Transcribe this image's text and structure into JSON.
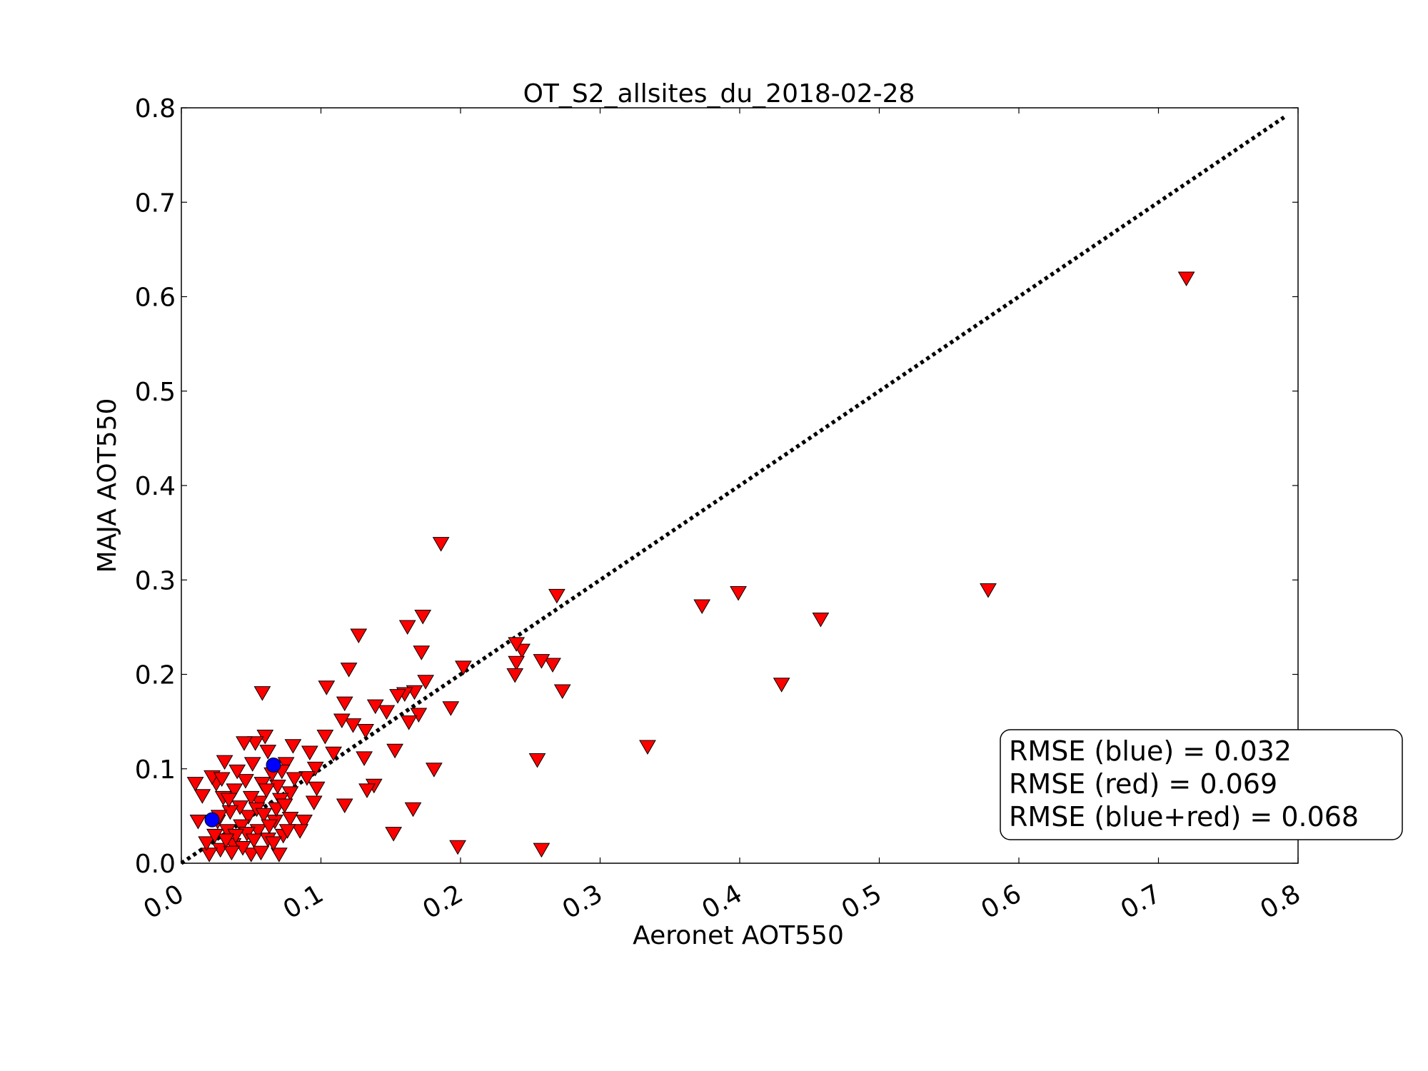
{
  "chart_data": {
    "type": "scatter",
    "title": "OT_S2_allsites_du_2018-02-28",
    "xlabel": "Aeronet AOT550",
    "ylabel": "MAJA AOT550",
    "xlim": [
      0.0,
      0.8
    ],
    "ylim": [
      0.0,
      0.8
    ],
    "xticks": [
      "0.0",
      "0.1",
      "0.2",
      "0.3",
      "0.4",
      "0.5",
      "0.6",
      "0.7",
      "0.8"
    ],
    "yticks": [
      "0.0",
      "0.1",
      "0.2",
      "0.3",
      "0.4",
      "0.5",
      "0.6",
      "0.7",
      "0.8"
    ],
    "grid": false,
    "reference_line": {
      "style": "dotted",
      "color": "#000000",
      "from": [
        0.0,
        0.0
      ],
      "to": [
        0.79,
        0.79
      ]
    },
    "series": [
      {
        "color": "#ff0000",
        "marker": "triangle-down",
        "points": [
          [
            0.72,
            0.62
          ],
          [
            0.578,
            0.29
          ],
          [
            0.458,
            0.259
          ],
          [
            0.43,
            0.19
          ],
          [
            0.399,
            0.287
          ],
          [
            0.373,
            0.273
          ],
          [
            0.334,
            0.124
          ],
          [
            0.269,
            0.284
          ],
          [
            0.273,
            0.183
          ],
          [
            0.266,
            0.211
          ],
          [
            0.258,
            0.215
          ],
          [
            0.255,
            0.11
          ],
          [
            0.258,
            0.015
          ],
          [
            0.244,
            0.226
          ],
          [
            0.24,
            0.213
          ],
          [
            0.239,
            0.2
          ],
          [
            0.24,
            0.233
          ],
          [
            0.202,
            0.208
          ],
          [
            0.198,
            0.018
          ],
          [
            0.193,
            0.165
          ],
          [
            0.186,
            0.339
          ],
          [
            0.181,
            0.1
          ],
          [
            0.175,
            0.193
          ],
          [
            0.172,
            0.224
          ],
          [
            0.173,
            0.262
          ],
          [
            0.17,
            0.158
          ],
          [
            0.167,
            0.182
          ],
          [
            0.166,
            0.058
          ],
          [
            0.162,
            0.251
          ],
          [
            0.163,
            0.15
          ],
          [
            0.16,
            0.18
          ],
          [
            0.155,
            0.178
          ],
          [
            0.153,
            0.12
          ],
          [
            0.152,
            0.032
          ],
          [
            0.147,
            0.161
          ],
          [
            0.138,
            0.083
          ],
          [
            0.139,
            0.167
          ],
          [
            0.133,
            0.078
          ],
          [
            0.131,
            0.112
          ],
          [
            0.132,
            0.141
          ],
          [
            0.127,
            0.242
          ],
          [
            0.123,
            0.147
          ],
          [
            0.12,
            0.206
          ],
          [
            0.117,
            0.17
          ],
          [
            0.115,
            0.152
          ],
          [
            0.117,
            0.062
          ],
          [
            0.109,
            0.117
          ],
          [
            0.104,
            0.187
          ],
          [
            0.103,
            0.135
          ],
          [
            0.097,
            0.08
          ],
          [
            0.095,
            0.065
          ],
          [
            0.096,
            0.101
          ],
          [
            0.092,
            0.118
          ],
          [
            0.09,
            0.091
          ],
          [
            0.088,
            0.045
          ],
          [
            0.085,
            0.035
          ],
          [
            0.08,
            0.125
          ],
          [
            0.081,
            0.09
          ],
          [
            0.078,
            0.075
          ],
          [
            0.078,
            0.048
          ],
          [
            0.075,
            0.106
          ],
          [
            0.073,
            0.03
          ],
          [
            0.07,
            0.01
          ],
          [
            0.071,
            0.068
          ],
          [
            0.069,
            0.082
          ],
          [
            0.067,
            0.045
          ],
          [
            0.065,
            0.095
          ],
          [
            0.062,
            0.119
          ],
          [
            0.062,
            0.026
          ],
          [
            0.06,
            0.135
          ],
          [
            0.058,
            0.181
          ],
          [
            0.058,
            0.085
          ],
          [
            0.056,
            0.065
          ],
          [
            0.055,
            0.035
          ],
          [
            0.053,
            0.128
          ],
          [
            0.051,
            0.106
          ],
          [
            0.05,
            0.01
          ],
          [
            0.05,
            0.07
          ],
          [
            0.048,
            0.05
          ],
          [
            0.046,
            0.088
          ],
          [
            0.045,
            0.128
          ],
          [
            0.043,
            0.04
          ],
          [
            0.042,
            0.06
          ],
          [
            0.04,
            0.098
          ],
          [
            0.038,
            0.078
          ],
          [
            0.037,
            0.02
          ],
          [
            0.035,
            0.055
          ],
          [
            0.033,
            0.035
          ],
          [
            0.031,
            0.108
          ],
          [
            0.03,
            0.07
          ],
          [
            0.028,
            0.015
          ],
          [
            0.026,
            0.045
          ],
          [
            0.025,
            0.085
          ],
          [
            0.022,
            0.092
          ],
          [
            0.02,
            0.01
          ],
          [
            0.018,
            0.022
          ],
          [
            0.015,
            0.072
          ],
          [
            0.012,
            0.045
          ],
          [
            0.01,
            0.085
          ],
          [
            0.044,
            0.017
          ],
          [
            0.047,
            0.032
          ],
          [
            0.052,
            0.025
          ],
          [
            0.054,
            0.058
          ],
          [
            0.057,
            0.012
          ],
          [
            0.059,
            0.052
          ],
          [
            0.061,
            0.078
          ],
          [
            0.063,
            0.04
          ],
          [
            0.066,
            0.022
          ],
          [
            0.068,
            0.058
          ],
          [
            0.072,
            0.098
          ],
          [
            0.074,
            0.062
          ],
          [
            0.076,
            0.035
          ],
          [
            0.039,
            0.03
          ],
          [
            0.036,
            0.012
          ],
          [
            0.034,
            0.068
          ],
          [
            0.032,
            0.025
          ],
          [
            0.029,
            0.09
          ],
          [
            0.027,
            0.05
          ],
          [
            0.024,
            0.03
          ]
        ]
      },
      {
        "color": "#0000ff",
        "marker": "circle",
        "points": [
          [
            0.022,
            0.046
          ],
          [
            0.066,
            0.104
          ]
        ]
      }
    ],
    "annotation": {
      "position": "lower-right",
      "lines": [
        "RMSE (blue) = 0.032",
        "RMSE (red) = 0.069",
        "RMSE (blue+red) = 0.068"
      ]
    }
  }
}
